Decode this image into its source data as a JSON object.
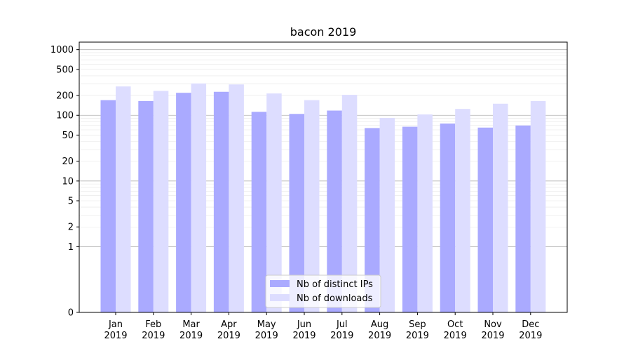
{
  "chart_data": {
    "type": "bar",
    "title": "bacon 2019",
    "xlabel": "",
    "ylabel": "",
    "y_scale": "symlog",
    "ylim": [
      0,
      1300
    ],
    "y_ticks": [
      0,
      1,
      2,
      5,
      10,
      20,
      50,
      100,
      200,
      500,
      1000
    ],
    "y_tick_labels": [
      "0",
      "1",
      "2",
      "5",
      "10",
      "20",
      "50",
      "100",
      "200",
      "500",
      "1000"
    ],
    "grid": true,
    "legend_position": "bottom-center",
    "categories": [
      [
        "Jan",
        "2019"
      ],
      [
        "Feb",
        "2019"
      ],
      [
        "Mar",
        "2019"
      ],
      [
        "Apr",
        "2019"
      ],
      [
        "May",
        "2019"
      ],
      [
        "Jun",
        "2019"
      ],
      [
        "Jul",
        "2019"
      ],
      [
        "Aug",
        "2019"
      ],
      [
        "Sep",
        "2019"
      ],
      [
        "Oct",
        "2019"
      ],
      [
        "Nov",
        "2019"
      ],
      [
        "Dec",
        "2019"
      ]
    ],
    "series": [
      {
        "name": "Nb of distinct IPs",
        "color": "#aaaaff",
        "values": [
          170,
          165,
          220,
          228,
          113,
          105,
          118,
          64,
          67,
          75,
          65,
          70
        ]
      },
      {
        "name": "Nb of downloads",
        "color": "#ddddff",
        "values": [
          275,
          235,
          305,
          295,
          215,
          170,
          205,
          91,
          103,
          125,
          150,
          165
        ]
      }
    ]
  }
}
